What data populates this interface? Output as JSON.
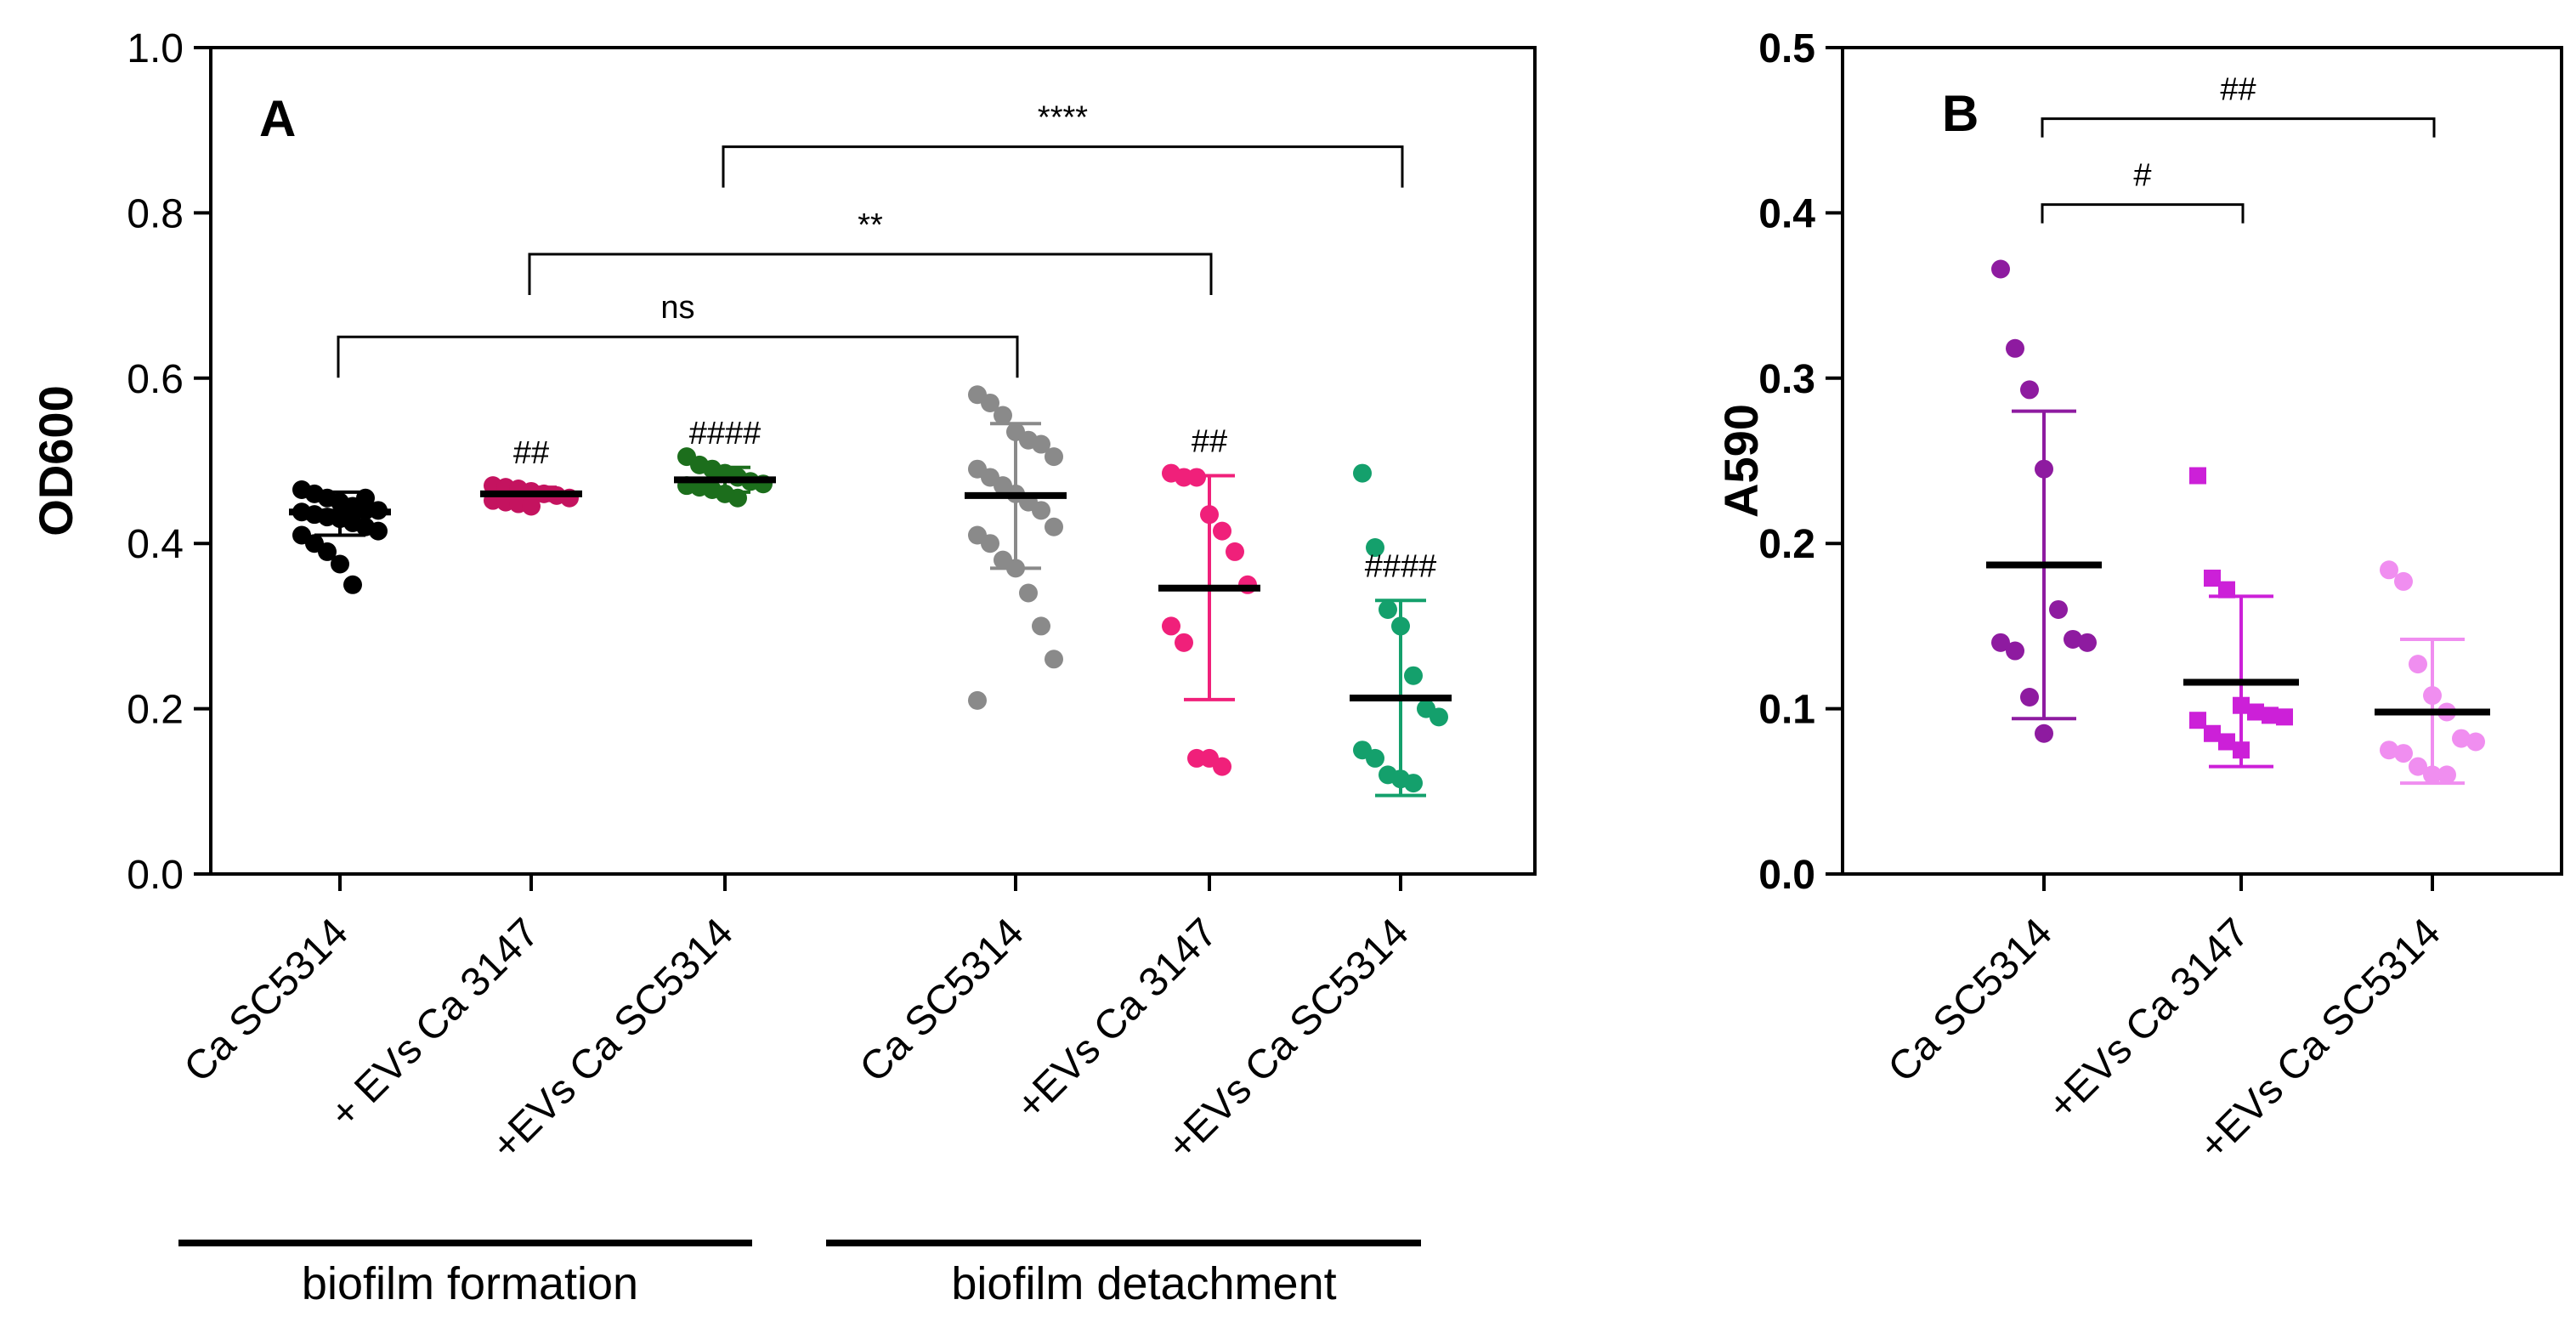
{
  "chart_data": [
    {
      "panel": "A",
      "type": "scatter",
      "ylabel": "OD600",
      "ylim": [
        0,
        1.0
      ],
      "yticks": [
        "0.0",
        "0.2",
        "0.4",
        "0.6",
        "0.8",
        "1.0"
      ],
      "categories": [
        "Ca SC5314",
        "+ EVs Ca 3147",
        "+EVs Ca SC5314",
        "Ca SC5314",
        "+EVs Ca 3147",
        "+EVs Ca SC5314"
      ],
      "groups": [
        {
          "label": "biofilm formation",
          "categories": [
            0,
            1,
            2
          ]
        },
        {
          "label": "biofilm detachment",
          "categories": [
            3,
            4,
            5
          ]
        }
      ],
      "series": [
        {
          "name": "Ca SC5314",
          "group": "biofilm formation",
          "color": "#000000",
          "points": [
            0.465,
            0.46,
            0.455,
            0.45,
            0.445,
            0.44,
            0.44,
            0.438,
            0.435,
            0.432,
            0.43,
            0.425,
            0.42,
            0.415,
            0.41,
            0.4,
            0.39,
            0.375,
            0.35,
            0.455
          ],
          "mean": 0.438,
          "sd_low": 0.41,
          "sd_high": 0.462,
          "annotation": ""
        },
        {
          "name": "+ EVs Ca 3147",
          "group": "biofilm formation",
          "color": "#c4135f",
          "points": [
            0.47,
            0.468,
            0.466,
            0.463,
            0.46,
            0.458,
            0.455,
            0.452,
            0.45,
            0.448,
            0.445
          ],
          "mean": 0.46,
          "sd_low": 0.452,
          "sd_high": 0.468,
          "annotation": "##"
        },
        {
          "name": "+EVs Ca SC5314",
          "group": "biofilm formation",
          "color": "#1c6e1c",
          "points": [
            0.505,
            0.495,
            0.49,
            0.485,
            0.48,
            0.475,
            0.472,
            0.47,
            0.468,
            0.465,
            0.46,
            0.455
          ],
          "mean": 0.477,
          "sd_low": 0.462,
          "sd_high": 0.492,
          "annotation": "####"
        },
        {
          "name": "Ca SC5314",
          "group": "biofilm detachment",
          "color": "#8a8a8a",
          "points": [
            0.58,
            0.57,
            0.555,
            0.535,
            0.525,
            0.52,
            0.505,
            0.49,
            0.48,
            0.47,
            0.46,
            0.45,
            0.44,
            0.42,
            0.41,
            0.4,
            0.38,
            0.37,
            0.34,
            0.3,
            0.26,
            0.21
          ],
          "mean": 0.458,
          "sd_low": 0.37,
          "sd_high": 0.545,
          "annotation": ""
        },
        {
          "name": "+EVs Ca 3147",
          "group": "biofilm detachment",
          "color": "#f0207a",
          "points": [
            0.485,
            0.48,
            0.48,
            0.435,
            0.415,
            0.39,
            0.35,
            0.3,
            0.28,
            0.14,
            0.14,
            0.13
          ],
          "mean": 0.346,
          "sd_low": 0.211,
          "sd_high": 0.482,
          "annotation": "##"
        },
        {
          "name": "+EVs Ca SC5314",
          "group": "biofilm detachment",
          "color": "#14a06c",
          "points": [
            0.485,
            0.395,
            0.32,
            0.3,
            0.24,
            0.2,
            0.19,
            0.15,
            0.14,
            0.12,
            0.115,
            0.11
          ],
          "mean": 0.213,
          "sd_low": 0.095,
          "sd_high": 0.331,
          "annotation": "####"
        }
      ],
      "comparisons": [
        {
          "from": 0,
          "to": 3,
          "label": "ns",
          "height": 0.65
        },
        {
          "from": 1,
          "to": 4,
          "label": "**",
          "height": 0.75
        },
        {
          "from": 2,
          "to": 5,
          "label": "****",
          "height": 0.88
        }
      ]
    },
    {
      "panel": "B",
      "type": "scatter",
      "ylabel": "A590",
      "ylim": [
        0,
        0.5
      ],
      "yticks": [
        "0.0",
        "0.1",
        "0.2",
        "0.3",
        "0.4",
        "0.5"
      ],
      "categories": [
        "Ca SC5314",
        "+EVs Ca 3147",
        "+EVs Ca SC5314"
      ],
      "series": [
        {
          "name": "Ca SC5314",
          "color": "#8e1ba0",
          "marker": "circle",
          "points": [
            0.366,
            0.318,
            0.293,
            0.245,
            0.16,
            0.142,
            0.14,
            0.14,
            0.135,
            0.107,
            0.085
          ],
          "mean": 0.187,
          "sd_low": 0.094,
          "sd_high": 0.28,
          "annotation": ""
        },
        {
          "name": "+EVs Ca 3147",
          "color": "#cc20d8",
          "marker": "square",
          "points": [
            0.241,
            0.179,
            0.172,
            0.102,
            0.098,
            0.096,
            0.095,
            0.093,
            0.085,
            0.08,
            0.075
          ],
          "mean": 0.116,
          "sd_low": 0.065,
          "sd_high": 0.168,
          "annotation": ""
        },
        {
          "name": "+EVs Ca SC5314",
          "color": "#f08ef0",
          "marker": "circle",
          "points": [
            0.184,
            0.177,
            0.127,
            0.108,
            0.098,
            0.082,
            0.08,
            0.075,
            0.073,
            0.065,
            0.06,
            0.06
          ],
          "mean": 0.098,
          "sd_low": 0.055,
          "sd_high": 0.142,
          "annotation": ""
        }
      ],
      "comparisons": [
        {
          "from": 0,
          "to": 1,
          "label": "#",
          "height": 0.405
        },
        {
          "from": 0,
          "to": 2,
          "label": "##",
          "height": 0.457
        }
      ]
    }
  ]
}
